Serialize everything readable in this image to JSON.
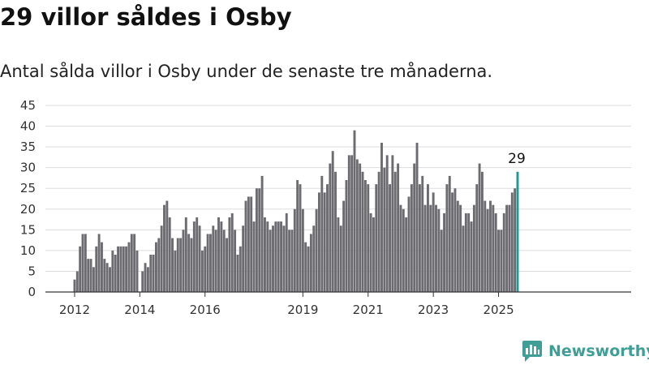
{
  "title": "29 villor såldes i Osby",
  "subtitle": "Antal sålda villor i Osby under de senaste tre månaderna.",
  "brand": {
    "name": "Newsworthy",
    "color": "#3f9e95"
  },
  "colors": {
    "bar": "#6c6b70",
    "highlight": "#1f9a92",
    "grid": "#dddddd",
    "axis": "#333333"
  },
  "chart_data": {
    "type": "bar",
    "ylim": [
      0,
      45
    ],
    "y_ticks": [
      0,
      5,
      10,
      15,
      20,
      25,
      30,
      35,
      40,
      45
    ],
    "grid": true,
    "x_ticks": [
      "2012",
      "2014",
      "2016",
      "2019",
      "2021",
      "2023",
      "2025"
    ],
    "start_month": "2012-01",
    "highlight_last": true,
    "last_value_label": "29",
    "values": [
      3,
      5,
      11,
      14,
      14,
      8,
      8,
      6,
      11,
      14,
      12,
      8,
      7,
      6,
      10,
      9,
      11,
      11,
      11,
      11,
      12,
      14,
      14,
      10,
      0,
      5,
      7,
      6,
      9,
      9,
      12,
      13,
      16,
      21,
      22,
      18,
      13,
      10,
      13,
      13,
      15,
      18,
      14,
      13,
      17,
      18,
      16,
      10,
      11,
      14,
      14,
      16,
      15,
      18,
      17,
      15,
      13,
      18,
      19,
      15,
      9,
      11,
      16,
      22,
      23,
      23,
      17,
      25,
      25,
      28,
      18,
      17,
      15,
      16,
      17,
      17,
      17,
      16,
      19,
      15,
      15,
      20,
      27,
      26,
      20,
      12,
      11,
      14,
      16,
      20,
      24,
      28,
      24,
      26,
      31,
      34,
      29,
      18,
      16,
      22,
      27,
      33,
      33,
      39,
      32,
      31,
      29,
      27,
      26,
      19,
      18,
      26,
      29,
      36,
      30,
      33,
      26,
      33,
      29,
      31,
      21,
      20,
      18,
      23,
      26,
      31,
      36,
      26,
      28,
      21,
      26,
      21,
      24,
      21,
      20,
      15,
      19,
      26,
      28,
      24,
      25,
      22,
      21,
      16,
      19,
      19,
      17,
      21,
      26,
      31,
      29,
      22,
      20,
      22,
      21,
      19,
      15,
      15,
      19,
      21,
      21,
      24,
      25,
      29
    ]
  }
}
